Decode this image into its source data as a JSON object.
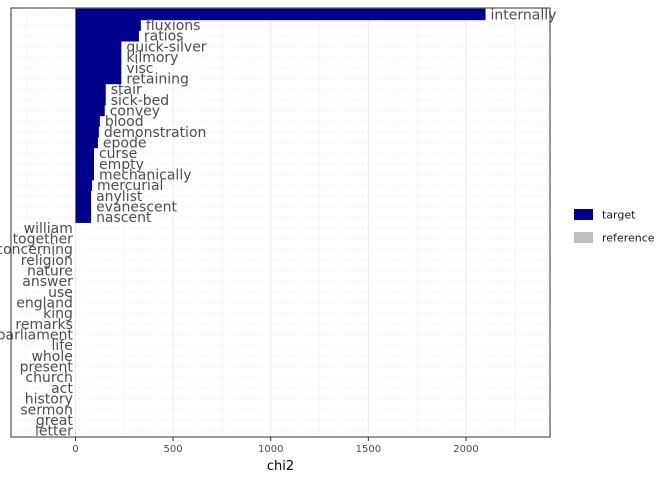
{
  "chart_data": {
    "type": "bar",
    "orientation": "horizontal",
    "title": "",
    "xlabel": "chi2",
    "ylabel": "",
    "xlim": [
      -330,
      2430
    ],
    "xticks": [
      0,
      500,
      1000,
      1500,
      2000
    ],
    "grid": true,
    "legend_position": "right",
    "colors": {
      "target": "#00008B",
      "reference": "#BEBEBE"
    },
    "legend": [
      {
        "name": "target",
        "color": "#00008B"
      },
      {
        "name": "reference",
        "color": "#BEBEBE"
      }
    ],
    "series": [
      {
        "name": "target",
        "categories": [
          "internally",
          "fluxions",
          "ratios",
          "quick-silver",
          "kilmory",
          "visc",
          "retaining",
          "stair",
          "sick-bed",
          "convey",
          "blood",
          "demonstration",
          "epode",
          "curse",
          "empty",
          "mechanically",
          "mercurial",
          "anylist",
          "evanescent",
          "nascent"
        ],
        "values": [
          2100,
          335,
          325,
          235,
          235,
          235,
          235,
          155,
          155,
          150,
          125,
          120,
          115,
          95,
          95,
          95,
          85,
          80,
          80,
          80
        ]
      },
      {
        "name": "reference",
        "categories": [
          "william",
          "together",
          "concerning",
          "religion",
          "nature",
          "answer",
          "use",
          "england",
          "king",
          "remarks",
          "parliament",
          "life",
          "whole",
          "present",
          "church",
          "act",
          "history",
          "sermon",
          "great",
          "letter"
        ],
        "values": [
          -3,
          -3,
          -3,
          -3,
          -3,
          -3,
          -3,
          -3,
          -3,
          -3,
          -3,
          -3,
          -3,
          -3,
          -3,
          -3,
          -3,
          -3,
          -3,
          -3
        ]
      }
    ]
  }
}
